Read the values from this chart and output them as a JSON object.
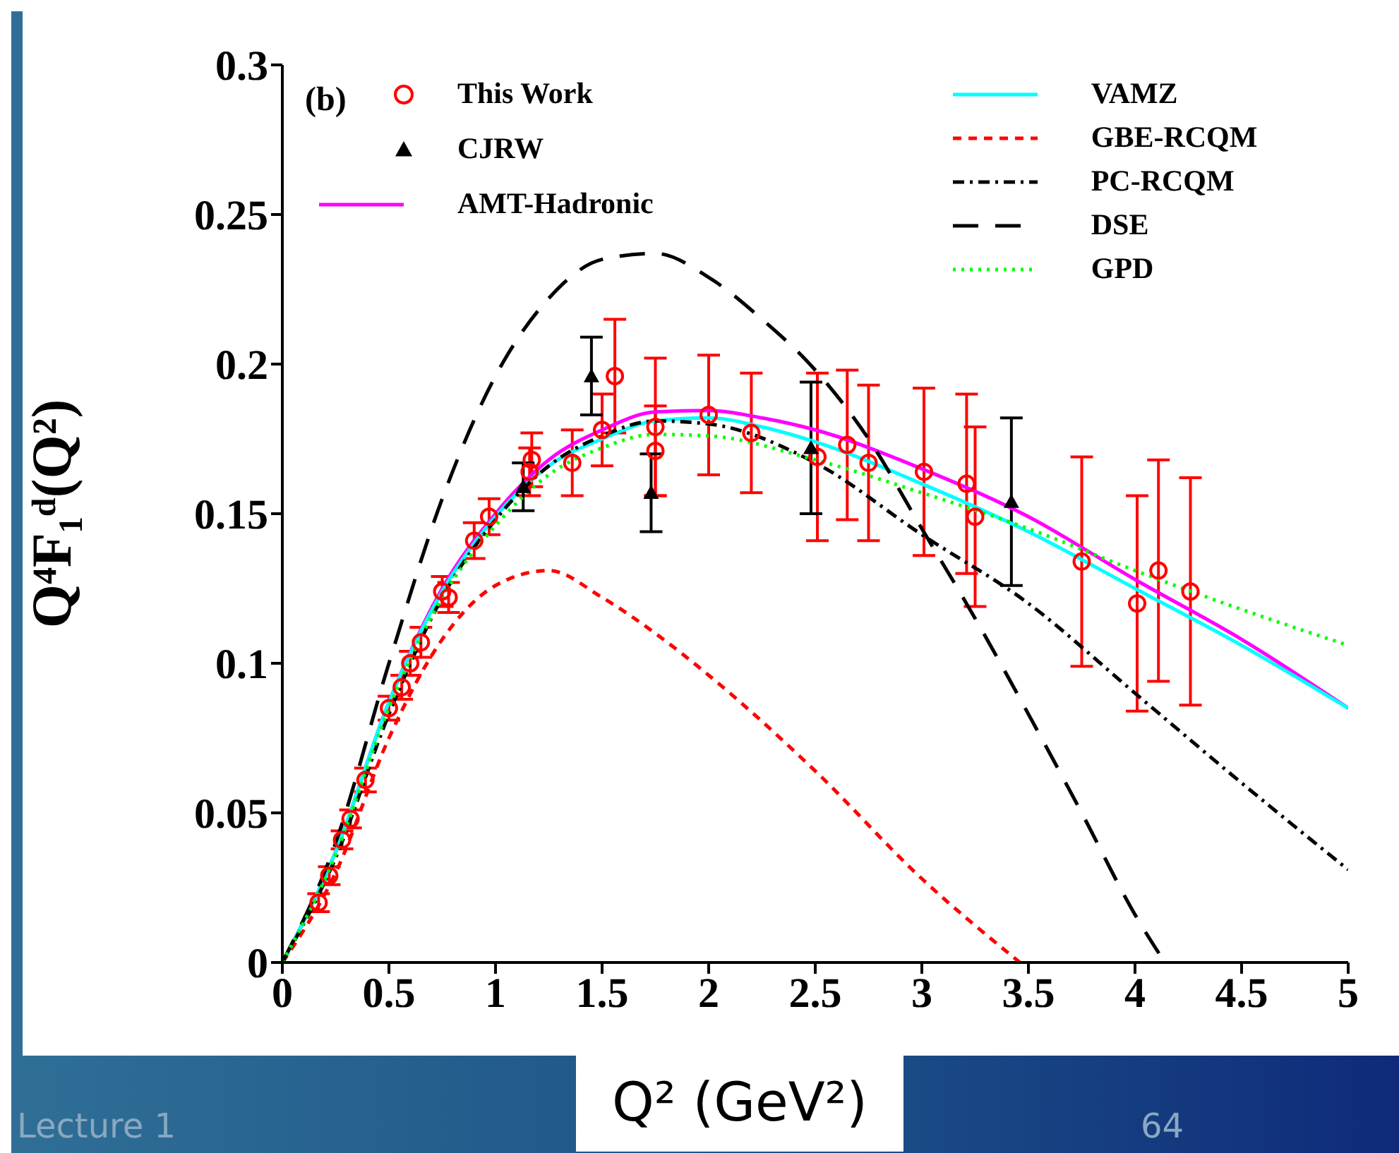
{
  "chart_data": {
    "type": "line",
    "xlabel": "Q² (GeV²)",
    "ylabel": "Q⁴F₁ᵈ(Q²)",
    "xlim": [
      0,
      5
    ],
    "xticks": [
      0,
      0.5,
      1,
      1.5,
      2,
      2.5,
      3,
      3.5,
      4,
      4.5,
      5
    ],
    "ylim": [
      0,
      0.3
    ],
    "yticks": [
      0,
      0.05,
      0.1,
      0.15,
      0.2,
      0.25,
      0.3
    ],
    "grid": false,
    "legend": "top",
    "annotations": [
      "(b)",
      "Lecture 1",
      "64"
    ],
    "series": [
      {
        "name": "This Work",
        "type": "scatter",
        "marker": "circle",
        "color": "#ff0000",
        "x": [
          0.17,
          0.22,
          0.28,
          0.32,
          0.39,
          0.5,
          0.56,
          0.6,
          0.65,
          0.75,
          0.78,
          0.9,
          0.97,
          1.16,
          1.17,
          1.36,
          1.5,
          1.56,
          1.75,
          1.75,
          2.0,
          2.2,
          2.51,
          2.65,
          2.75,
          3.01,
          3.21,
          3.25,
          3.75,
          4.01,
          4.11,
          4.26
        ],
        "values": [
          0.02,
          0.029,
          0.041,
          0.048,
          0.061,
          0.085,
          0.092,
          0.1,
          0.107,
          0.124,
          0.122,
          0.141,
          0.149,
          0.164,
          0.168,
          0.167,
          0.178,
          0.196,
          0.179,
          0.171,
          0.183,
          0.177,
          0.169,
          0.173,
          0.167,
          0.164,
          0.16,
          0.149,
          0.134,
          0.12,
          0.131,
          0.124
        ],
        "errors": [
          0.003,
          0.003,
          0.003,
          0.003,
          0.004,
          0.004,
          0.004,
          0.004,
          0.005,
          0.005,
          0.005,
          0.006,
          0.006,
          0.008,
          0.009,
          0.011,
          0.012,
          0.019,
          0.023,
          0.015,
          0.02,
          0.02,
          0.028,
          0.025,
          0.026,
          0.028,
          0.03,
          0.03,
          0.035,
          0.036,
          0.037,
          0.038
        ]
      },
      {
        "name": "CJRW",
        "type": "scatter",
        "marker": "triangle",
        "color": "#000000",
        "x": [
          1.13,
          1.45,
          1.73,
          2.48,
          3.42
        ],
        "values": [
          0.159,
          0.196,
          0.157,
          0.172,
          0.154
        ],
        "errors": [
          0.008,
          0.013,
          0.013,
          0.022,
          0.028
        ]
      },
      {
        "name": "AMT-Hadronic",
        "line_style": "solid",
        "color": "#ff00ff",
        "x": [
          0,
          0.25,
          0.5,
          0.75,
          1,
          1.25,
          1.5,
          1.75,
          2,
          2.25,
          2.5,
          3,
          3.5,
          4,
          4.5,
          5
        ],
        "values": [
          0,
          0.037,
          0.087,
          0.125,
          0.15,
          0.168,
          0.178,
          0.184,
          0.1845,
          0.182,
          0.178,
          0.165,
          0.149,
          0.128,
          0.108,
          0.085
        ]
      },
      {
        "name": "VAMZ",
        "line_style": "solid",
        "color": "#00ffff",
        "x": [
          0,
          0.25,
          0.5,
          0.75,
          1,
          1.25,
          1.5,
          1.75,
          2,
          2.25,
          2.5,
          3,
          3.5,
          4,
          4.5,
          5
        ],
        "values": [
          0,
          0.037,
          0.087,
          0.124,
          0.149,
          0.166,
          0.175,
          0.181,
          0.182,
          0.179,
          0.174,
          0.16,
          0.144,
          0.125,
          0.106,
          0.085
        ]
      },
      {
        "name": "GBE-RCQM",
        "line_style": "dashed",
        "color": "#ff0000",
        "x": [
          0,
          0.25,
          0.5,
          0.75,
          1,
          1.25,
          1.5,
          1.75,
          2,
          2.5,
          3,
          3.46
        ],
        "values": [
          0,
          0.03,
          0.075,
          0.108,
          0.126,
          0.131,
          0.122,
          0.11,
          0.096,
          0.064,
          0.028,
          0
        ]
      },
      {
        "name": "PC-RCQM",
        "line_style": "dashdot",
        "color": "#000000",
        "x": [
          0,
          0.25,
          0.5,
          0.75,
          1,
          1.25,
          1.5,
          1.75,
          2,
          2.5,
          3,
          3.5,
          4,
          4.5,
          5
        ],
        "values": [
          0,
          0.035,
          0.083,
          0.122,
          0.148,
          0.166,
          0.176,
          0.181,
          0.18,
          0.167,
          0.143,
          0.12,
          0.09,
          0.06,
          0.031
        ]
      },
      {
        "name": "DSE",
        "line_style": "longdash",
        "color": "#000000",
        "x": [
          0,
          0.25,
          0.5,
          0.75,
          1,
          1.25,
          1.5,
          1.75,
          2,
          2.25,
          2.5,
          2.75,
          3,
          3.25,
          3.5,
          3.75,
          4,
          4.14
        ],
        "values": [
          0,
          0.04,
          0.1,
          0.155,
          0.196,
          0.222,
          0.235,
          0.237,
          0.229,
          0.215,
          0.198,
          0.175,
          0.145,
          0.115,
          0.083,
          0.05,
          0.016,
          0
        ]
      },
      {
        "name": "GPD",
        "line_style": "dotted",
        "color": "#00ff00",
        "x": [
          0,
          0.25,
          0.5,
          0.75,
          1,
          1.25,
          1.5,
          1.75,
          2,
          2.5,
          3,
          3.5,
          4,
          4.5,
          5
        ],
        "values": [
          0,
          0.036,
          0.085,
          0.122,
          0.146,
          0.163,
          0.172,
          0.1765,
          0.176,
          0.168,
          0.157,
          0.145,
          0.131,
          0.118,
          0.106
        ]
      }
    ]
  }
}
